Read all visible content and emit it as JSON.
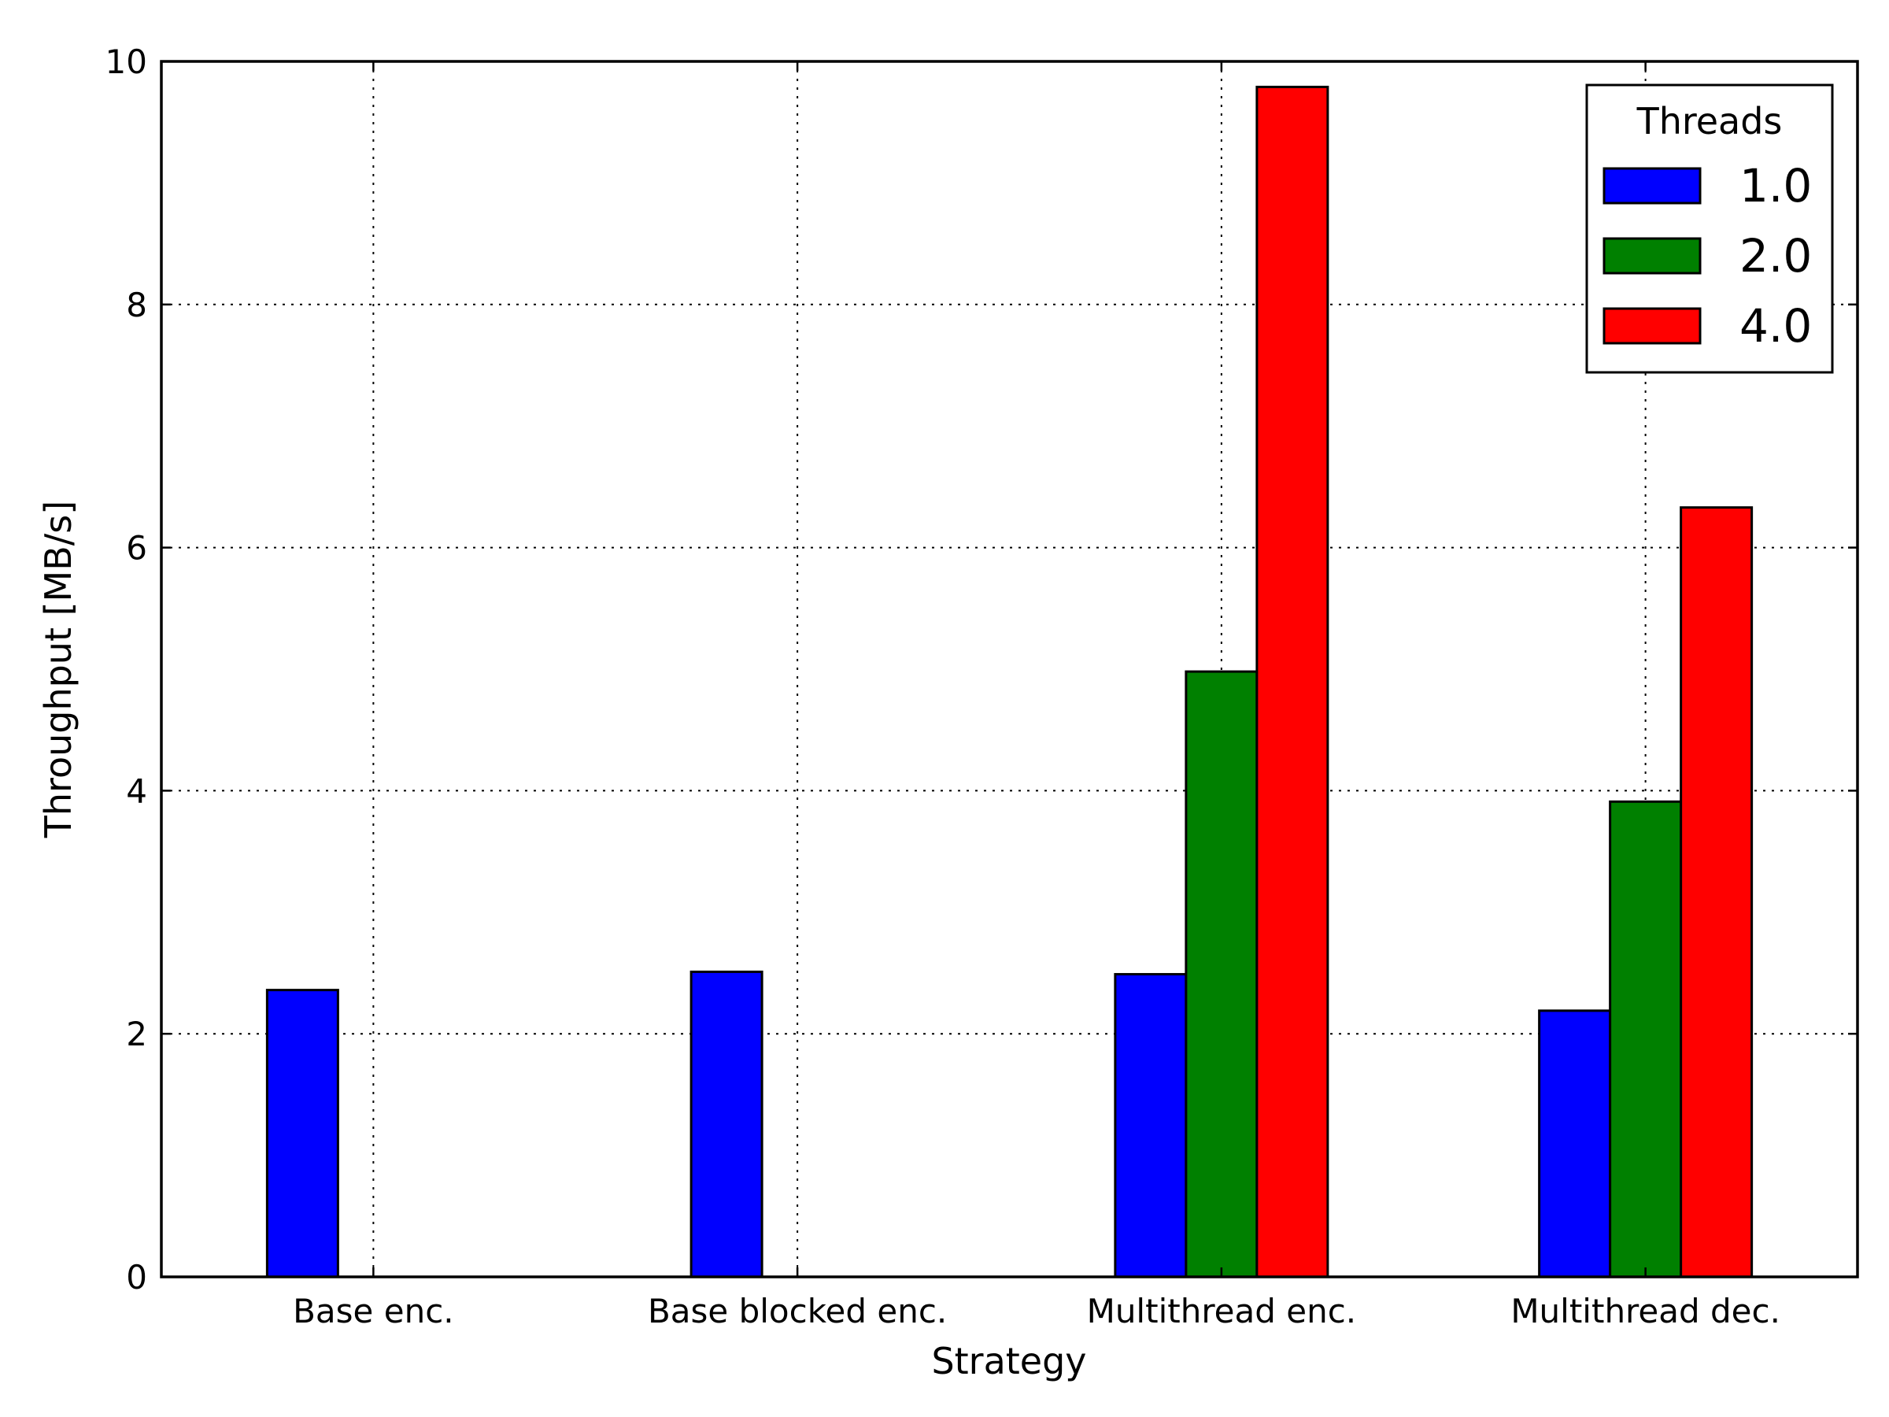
{
  "chart_data": {
    "type": "bar",
    "xlabel": "Strategy",
    "ylabel": "Throughput [MB/s]",
    "ylim": [
      0,
      10
    ],
    "yticks": [
      "0",
      "2",
      "4",
      "6",
      "8",
      "10"
    ],
    "grid": true,
    "categories": [
      "Base enc.",
      "Base blocked enc.",
      "Multithread enc.",
      "Multithread dec."
    ],
    "legend": {
      "title": "Threads",
      "placement": "top-right"
    },
    "series": [
      {
        "name": "1.0",
        "color": "#0000ff",
        "values": [
          2.36,
          2.51,
          2.49,
          2.19
        ]
      },
      {
        "name": "2.0",
        "color": "#008000",
        "values": [
          null,
          null,
          4.98,
          3.91
        ]
      },
      {
        "name": "4.0",
        "color": "#ff0000",
        "values": [
          null,
          null,
          9.79,
          6.33
        ]
      }
    ]
  }
}
